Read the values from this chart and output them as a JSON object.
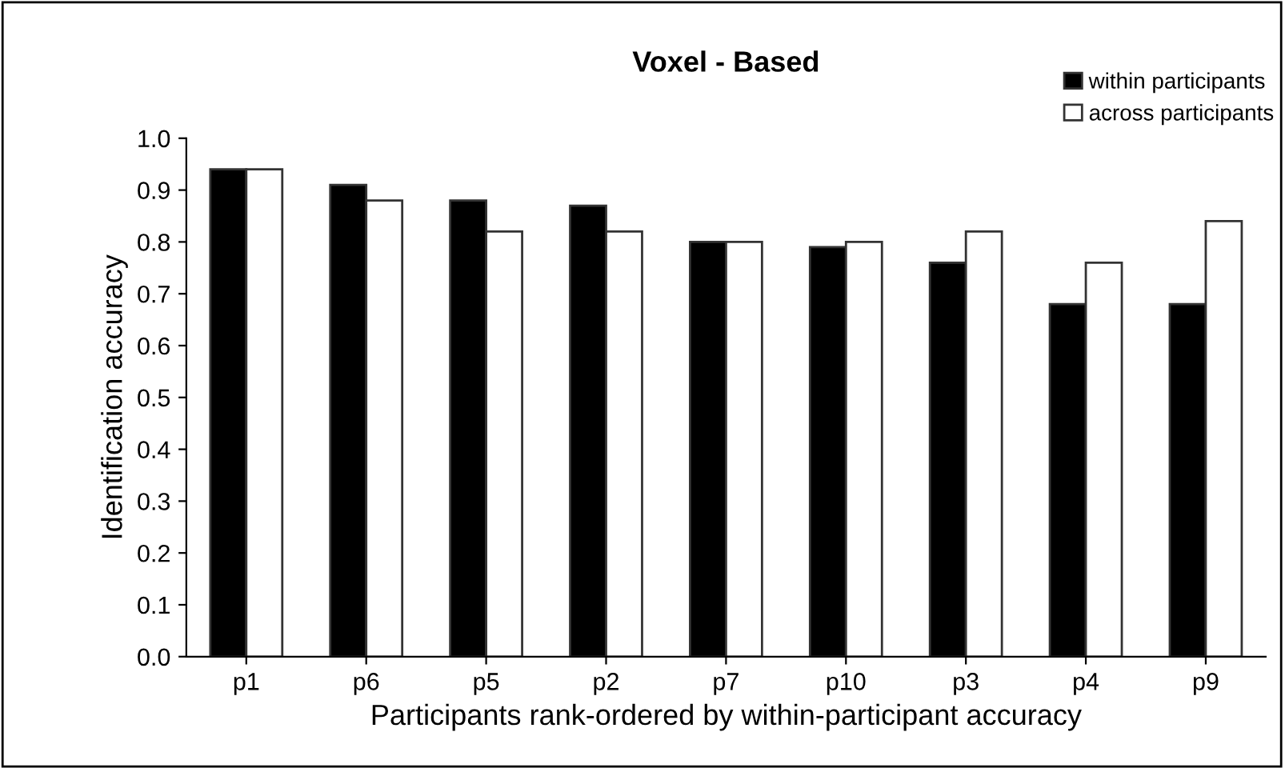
{
  "chart_data": {
    "type": "bar",
    "title": "Voxel - Based",
    "xlabel": "Participants rank-ordered by within-participant accuracy",
    "ylabel": "Identification accuracy",
    "categories": [
      "p1",
      "p6",
      "p5",
      "p2",
      "p7",
      "p10",
      "p3",
      "p4",
      "p9"
    ],
    "series": [
      {
        "name": "within participants",
        "color": "#000000",
        "values": [
          0.94,
          0.91,
          0.88,
          0.87,
          0.8,
          0.79,
          0.76,
          0.68,
          0.68
        ]
      },
      {
        "name": "across participants",
        "color": "#ffffff",
        "values": [
          0.94,
          0.88,
          0.82,
          0.82,
          0.8,
          0.8,
          0.82,
          0.76,
          0.84
        ]
      }
    ],
    "ylim": [
      0,
      1
    ],
    "yticks": [
      {
        "value": 0,
        "label": "0.0"
      },
      0.1,
      0.2,
      0.3,
      0.4,
      0.5,
      0.6,
      0.7,
      0.8,
      0.9,
      {
        "value": 1,
        "label": "1.0"
      }
    ],
    "grid": false,
    "legend": "top right"
  }
}
